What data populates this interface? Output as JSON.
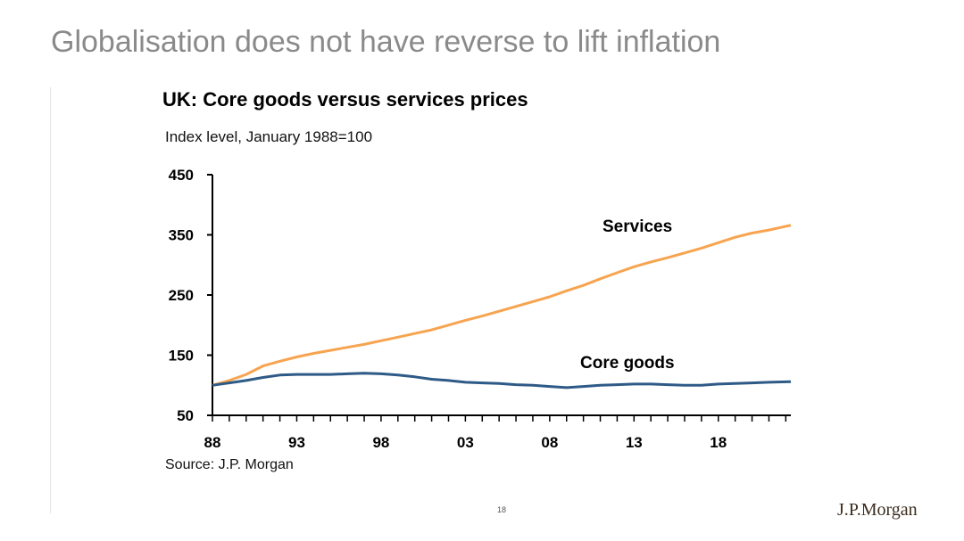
{
  "slide": {
    "title": "Globalisation does not have reverse to lift inflation",
    "page_number": "18",
    "brand": "J.P.Morgan"
  },
  "chart_data": {
    "type": "line",
    "title": "UK: Core goods versus services prices",
    "subtitle": "Index level, January 1988=100",
    "source": "Source: J.P. Morgan",
    "ylim": [
      50,
      450
    ],
    "xlim": [
      1988,
      2022.3
    ],
    "y_ticks": [
      50,
      150,
      250,
      350,
      450
    ],
    "x_ticks": [
      {
        "year": 1988,
        "label": "88"
      },
      {
        "year": 1993,
        "label": "93"
      },
      {
        "year": 1998,
        "label": "98"
      },
      {
        "year": 2003,
        "label": "03"
      },
      {
        "year": 2008,
        "label": "08"
      },
      {
        "year": 2013,
        "label": "13"
      },
      {
        "year": 2018,
        "label": "18"
      }
    ],
    "grid": false,
    "legend": "none",
    "series": [
      {
        "name": "Services",
        "color": "#f7a450",
        "x": [
          1988,
          1989,
          1990,
          1991,
          1992,
          1993,
          1994,
          1995,
          1996,
          1997,
          1998,
          1999,
          2000,
          2001,
          2002,
          2003,
          2004,
          2005,
          2006,
          2007,
          2008,
          2009,
          2010,
          2011,
          2012,
          2013,
          2014,
          2015,
          2016,
          2017,
          2018,
          2019,
          2020,
          2021,
          2022.3
        ],
        "y": [
          100,
          108,
          118,
          132,
          140,
          147,
          153,
          158,
          163,
          168,
          174,
          180,
          186,
          192,
          200,
          208,
          215,
          223,
          231,
          239,
          247,
          257,
          266,
          277,
          287,
          297,
          305,
          312,
          320,
          328,
          337,
          346,
          353,
          358,
          366
        ]
      },
      {
        "name": "Core goods",
        "color": "#2e5a87",
        "x": [
          1988,
          1989,
          1990,
          1991,
          1992,
          1993,
          1994,
          1995,
          1996,
          1997,
          1998,
          1999,
          2000,
          2001,
          2002,
          2003,
          2004,
          2005,
          2006,
          2007,
          2008,
          2009,
          2010,
          2011,
          2012,
          2013,
          2014,
          2015,
          2016,
          2017,
          2018,
          2019,
          2020,
          2021,
          2022.3
        ],
        "y": [
          100,
          104,
          108,
          113,
          117,
          118,
          118,
          118,
          119,
          120,
          119,
          117,
          114,
          110,
          108,
          105,
          104,
          103,
          101,
          100,
          98,
          96,
          98,
          100,
          101,
          102,
          102,
          101,
          100,
          100,
          102,
          103,
          104,
          105,
          106
        ]
      }
    ],
    "annotations": [
      {
        "text": "Services",
        "series": "Services"
      },
      {
        "text": "Core goods",
        "series": "Core goods"
      }
    ]
  }
}
